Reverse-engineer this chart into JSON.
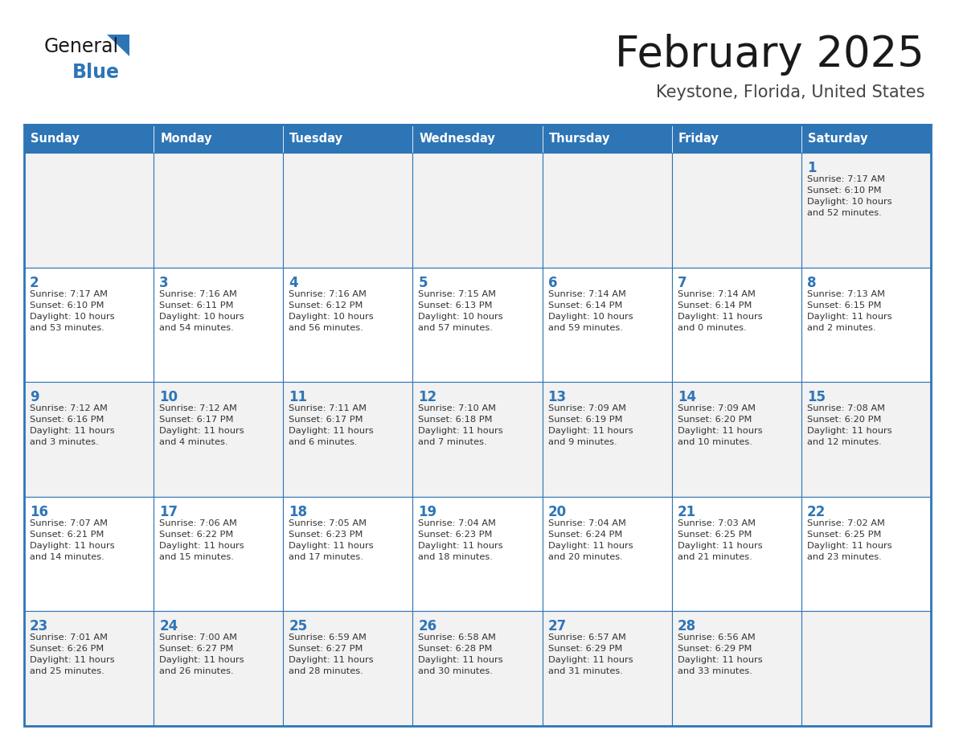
{
  "title": "February 2025",
  "subtitle": "Keystone, Florida, United States",
  "days_of_week": [
    "Sunday",
    "Monday",
    "Tuesday",
    "Wednesday",
    "Thursday",
    "Friday",
    "Saturday"
  ],
  "header_bg": "#2E75B6",
  "header_text": "#FFFFFF",
  "cell_bg": "#FFFFFF",
  "cell_bg_alt": "#F2F2F2",
  "border_color": "#2E75B6",
  "day_num_color": "#2E75B6",
  "cell_text_color": "#333333",
  "title_color": "#1a1a1a",
  "subtitle_color": "#444444",
  "logo_general_color": "#1a1a1a",
  "logo_blue_color": "#2E75B6",
  "weeks": [
    [
      {
        "day": null,
        "info": ""
      },
      {
        "day": null,
        "info": ""
      },
      {
        "day": null,
        "info": ""
      },
      {
        "day": null,
        "info": ""
      },
      {
        "day": null,
        "info": ""
      },
      {
        "day": null,
        "info": ""
      },
      {
        "day": 1,
        "info": "Sunrise: 7:17 AM\nSunset: 6:10 PM\nDaylight: 10 hours\nand 52 minutes."
      }
    ],
    [
      {
        "day": 2,
        "info": "Sunrise: 7:17 AM\nSunset: 6:10 PM\nDaylight: 10 hours\nand 53 minutes."
      },
      {
        "day": 3,
        "info": "Sunrise: 7:16 AM\nSunset: 6:11 PM\nDaylight: 10 hours\nand 54 minutes."
      },
      {
        "day": 4,
        "info": "Sunrise: 7:16 AM\nSunset: 6:12 PM\nDaylight: 10 hours\nand 56 minutes."
      },
      {
        "day": 5,
        "info": "Sunrise: 7:15 AM\nSunset: 6:13 PM\nDaylight: 10 hours\nand 57 minutes."
      },
      {
        "day": 6,
        "info": "Sunrise: 7:14 AM\nSunset: 6:14 PM\nDaylight: 10 hours\nand 59 minutes."
      },
      {
        "day": 7,
        "info": "Sunrise: 7:14 AM\nSunset: 6:14 PM\nDaylight: 11 hours\nand 0 minutes."
      },
      {
        "day": 8,
        "info": "Sunrise: 7:13 AM\nSunset: 6:15 PM\nDaylight: 11 hours\nand 2 minutes."
      }
    ],
    [
      {
        "day": 9,
        "info": "Sunrise: 7:12 AM\nSunset: 6:16 PM\nDaylight: 11 hours\nand 3 minutes."
      },
      {
        "day": 10,
        "info": "Sunrise: 7:12 AM\nSunset: 6:17 PM\nDaylight: 11 hours\nand 4 minutes."
      },
      {
        "day": 11,
        "info": "Sunrise: 7:11 AM\nSunset: 6:17 PM\nDaylight: 11 hours\nand 6 minutes."
      },
      {
        "day": 12,
        "info": "Sunrise: 7:10 AM\nSunset: 6:18 PM\nDaylight: 11 hours\nand 7 minutes."
      },
      {
        "day": 13,
        "info": "Sunrise: 7:09 AM\nSunset: 6:19 PM\nDaylight: 11 hours\nand 9 minutes."
      },
      {
        "day": 14,
        "info": "Sunrise: 7:09 AM\nSunset: 6:20 PM\nDaylight: 11 hours\nand 10 minutes."
      },
      {
        "day": 15,
        "info": "Sunrise: 7:08 AM\nSunset: 6:20 PM\nDaylight: 11 hours\nand 12 minutes."
      }
    ],
    [
      {
        "day": 16,
        "info": "Sunrise: 7:07 AM\nSunset: 6:21 PM\nDaylight: 11 hours\nand 14 minutes."
      },
      {
        "day": 17,
        "info": "Sunrise: 7:06 AM\nSunset: 6:22 PM\nDaylight: 11 hours\nand 15 minutes."
      },
      {
        "day": 18,
        "info": "Sunrise: 7:05 AM\nSunset: 6:23 PM\nDaylight: 11 hours\nand 17 minutes."
      },
      {
        "day": 19,
        "info": "Sunrise: 7:04 AM\nSunset: 6:23 PM\nDaylight: 11 hours\nand 18 minutes."
      },
      {
        "day": 20,
        "info": "Sunrise: 7:04 AM\nSunset: 6:24 PM\nDaylight: 11 hours\nand 20 minutes."
      },
      {
        "day": 21,
        "info": "Sunrise: 7:03 AM\nSunset: 6:25 PM\nDaylight: 11 hours\nand 21 minutes."
      },
      {
        "day": 22,
        "info": "Sunrise: 7:02 AM\nSunset: 6:25 PM\nDaylight: 11 hours\nand 23 minutes."
      }
    ],
    [
      {
        "day": 23,
        "info": "Sunrise: 7:01 AM\nSunset: 6:26 PM\nDaylight: 11 hours\nand 25 minutes."
      },
      {
        "day": 24,
        "info": "Sunrise: 7:00 AM\nSunset: 6:27 PM\nDaylight: 11 hours\nand 26 minutes."
      },
      {
        "day": 25,
        "info": "Sunrise: 6:59 AM\nSunset: 6:27 PM\nDaylight: 11 hours\nand 28 minutes."
      },
      {
        "day": 26,
        "info": "Sunrise: 6:58 AM\nSunset: 6:28 PM\nDaylight: 11 hours\nand 30 minutes."
      },
      {
        "day": 27,
        "info": "Sunrise: 6:57 AM\nSunset: 6:29 PM\nDaylight: 11 hours\nand 31 minutes."
      },
      {
        "day": 28,
        "info": "Sunrise: 6:56 AM\nSunset: 6:29 PM\nDaylight: 11 hours\nand 33 minutes."
      },
      {
        "day": null,
        "info": ""
      }
    ]
  ]
}
